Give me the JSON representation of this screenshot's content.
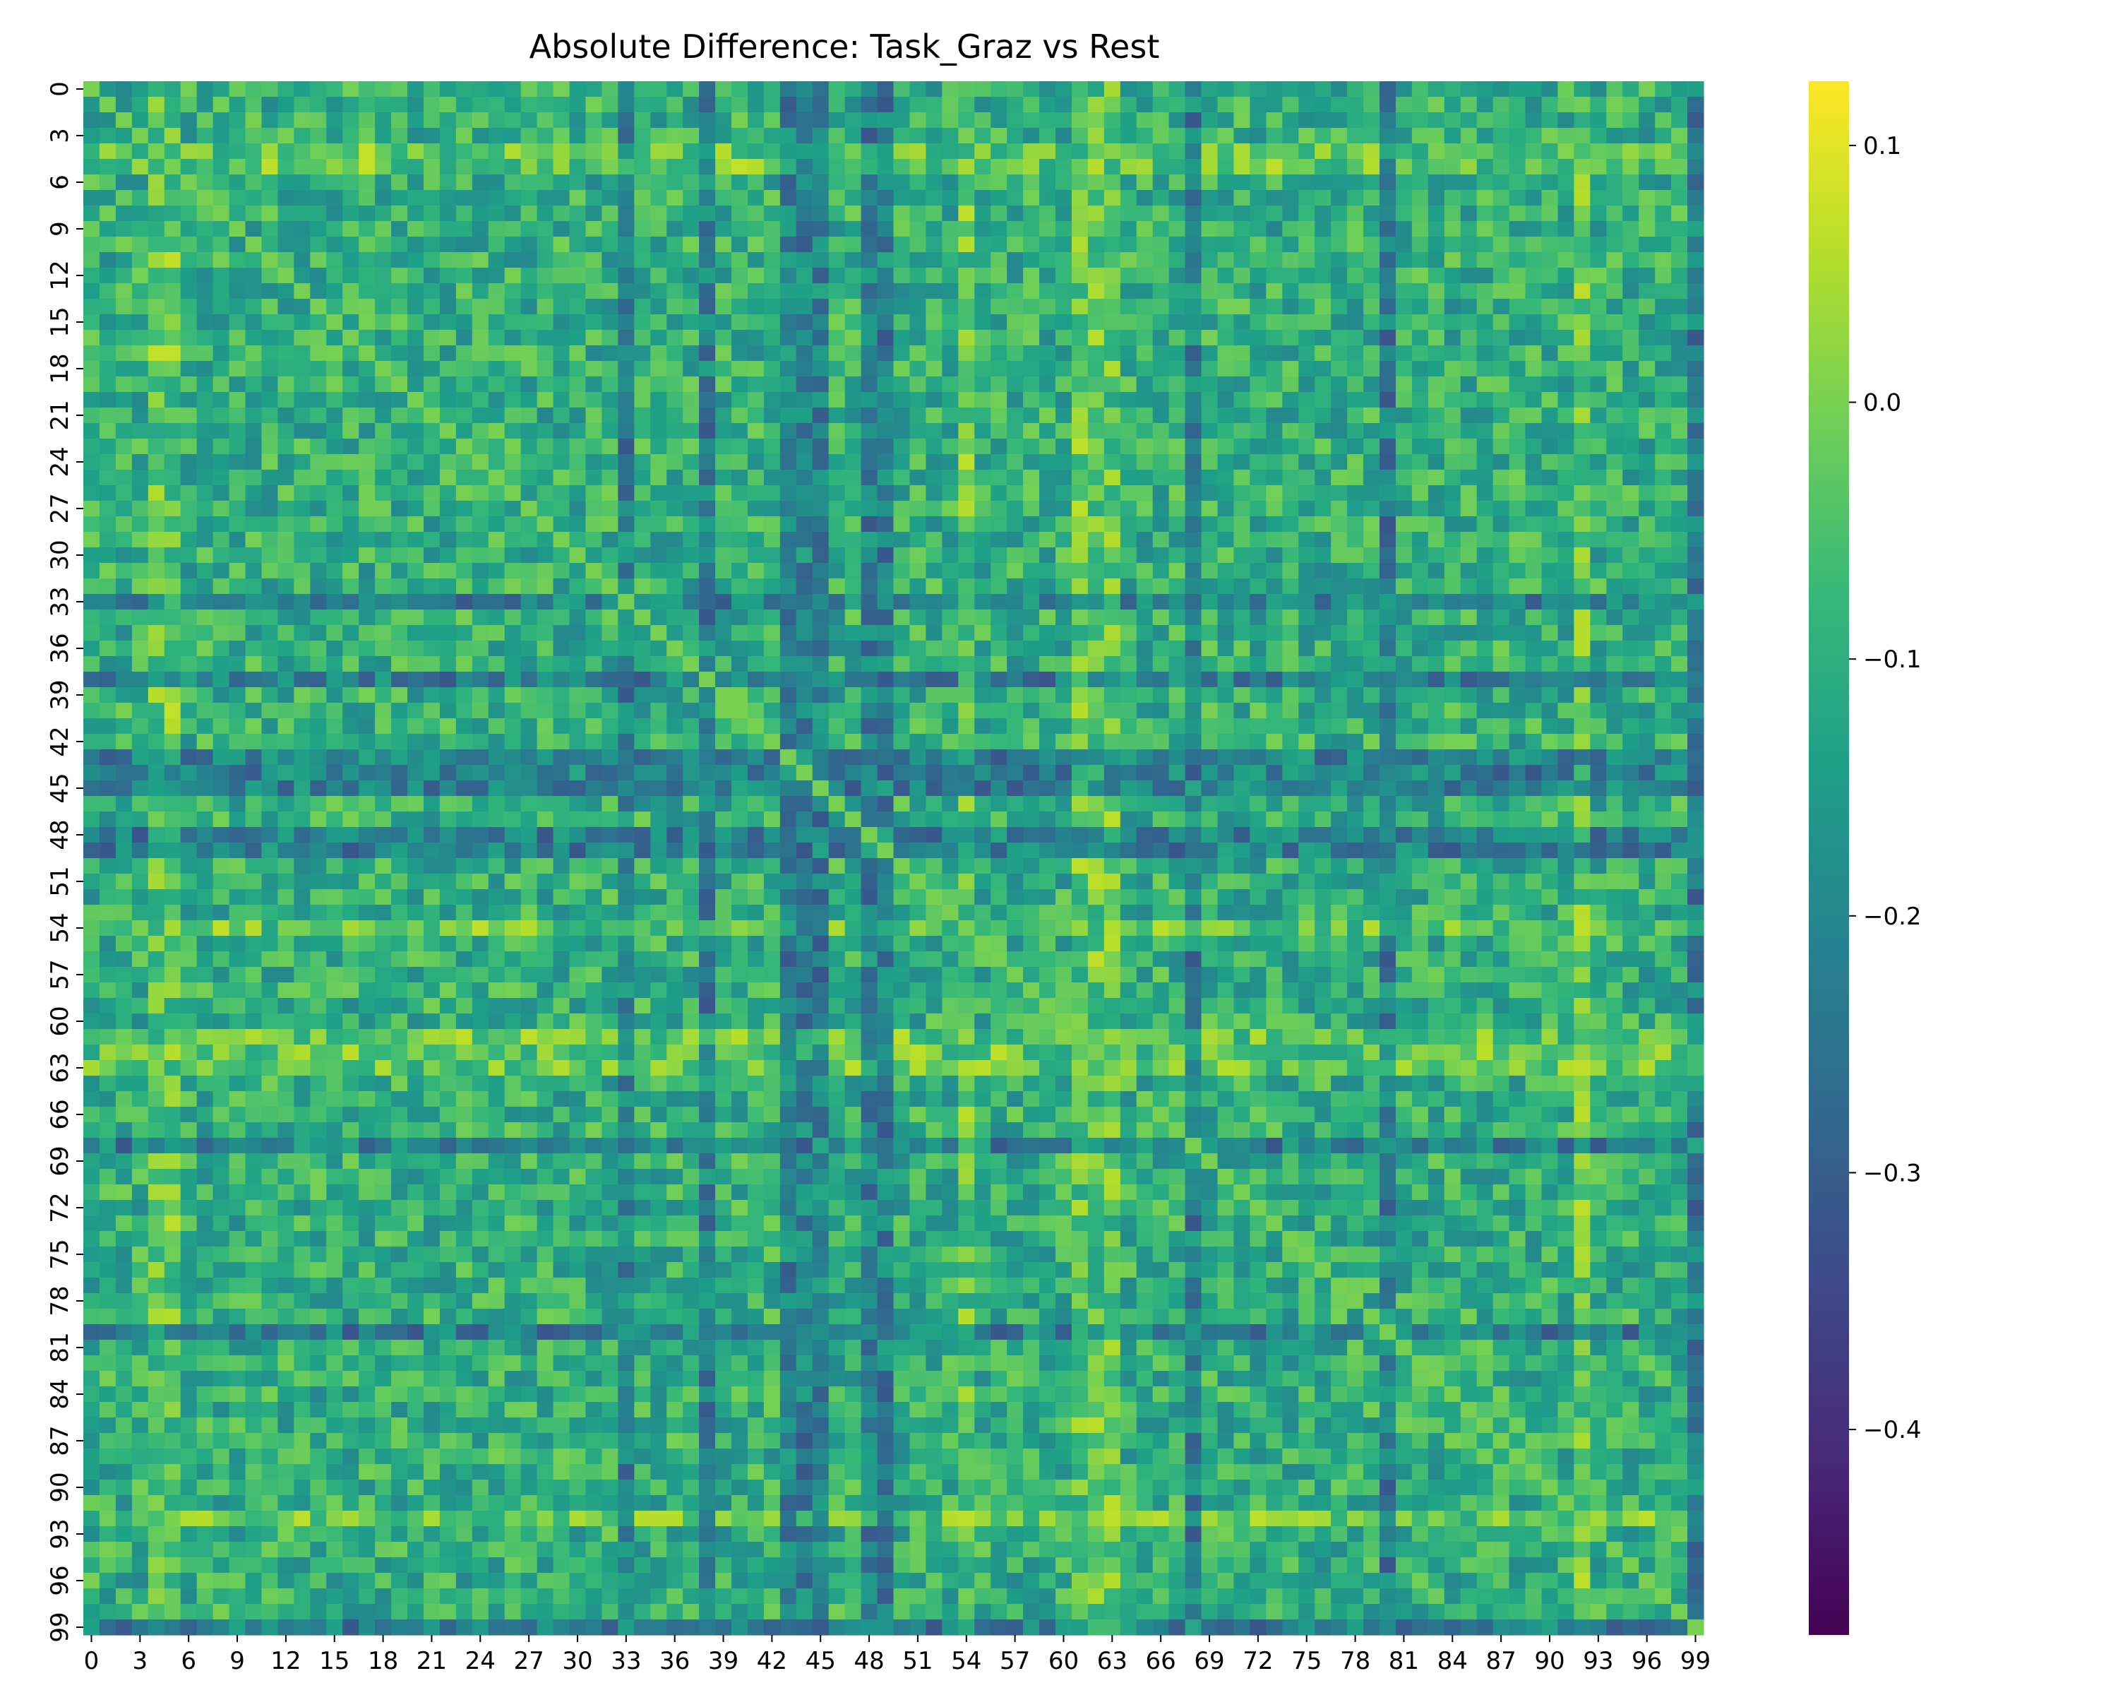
{
  "chart_data": {
    "type": "heatmap",
    "title": "Absolute Difference: Task_Graz vs Rest",
    "xlabel": "",
    "ylabel": "",
    "size": 100,
    "x_tick_labels": [
      "0",
      "3",
      "6",
      "9",
      "12",
      "15",
      "18",
      "21",
      "24",
      "27",
      "30",
      "33",
      "36",
      "39",
      "42",
      "45",
      "48",
      "51",
      "54",
      "57",
      "60",
      "63",
      "66",
      "69",
      "72",
      "75",
      "78",
      "81",
      "84",
      "87",
      "90",
      "93",
      "96",
      "99"
    ],
    "y_tick_labels": [
      "0",
      "3",
      "6",
      "9",
      "12",
      "15",
      "18",
      "21",
      "24",
      "27",
      "30",
      "33",
      "36",
      "39",
      "42",
      "45",
      "48",
      "51",
      "54",
      "57",
      "60",
      "63",
      "66",
      "69",
      "72",
      "75",
      "78",
      "81",
      "84",
      "87",
      "90",
      "93",
      "96",
      "99"
    ],
    "colorbar": {
      "colormap": "viridis",
      "vmin": -0.48,
      "vmax": 0.125,
      "tick_labels": [
        "0.1",
        "0.0",
        "−0.1",
        "−0.2",
        "−0.3",
        "−0.4"
      ],
      "tick_values": [
        0.1,
        0.0,
        -0.1,
        -0.2,
        -0.3,
        -0.4
      ]
    },
    "grid": false,
    "legend": "colorbar-right",
    "matrix_summary": {
      "diagonal_value": 0.0,
      "typical_range": [
        -0.2,
        0.0
      ],
      "high_rows_cols": [
        4,
        5,
        54,
        61,
        62,
        63,
        92
      ],
      "low_blocks_cols": [
        38,
        43,
        45,
        48,
        49,
        80,
        99
      ],
      "low_blocks_rows": [
        33,
        44,
        48,
        68,
        80
      ]
    }
  },
  "colors": {
    "viridis_stops": [
      "#440154",
      "#482878",
      "#3e4989",
      "#31688e",
      "#26828e",
      "#1f9e89",
      "#35b779",
      "#6ece58",
      "#b5de2b",
      "#fde725"
    ]
  }
}
